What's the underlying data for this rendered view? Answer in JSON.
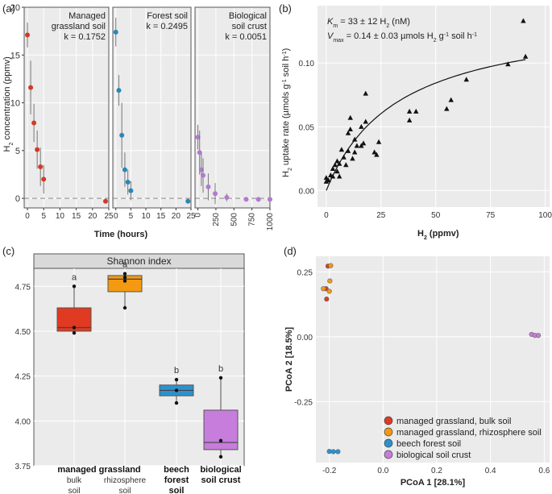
{
  "chart_data": [
    {
      "panel": "(a)",
      "type": "scatter",
      "ylabel": "H2 concentration (ppmv)",
      "xlabel": "Time (hours)",
      "ylim": [
        -1,
        20
      ],
      "yticks": [
        0,
        5,
        10,
        15,
        20
      ],
      "colors": {
        "grassland": "#d03a26",
        "forest": "#2a86b8",
        "crust": "#b07ad0"
      },
      "facets": [
        {
          "title_lines": [
            "Managed",
            "grassland soil"
          ],
          "k_label": "k = 0.1752",
          "xlim": [
            -1,
            25
          ],
          "xticks": [
            0,
            5,
            10,
            15,
            20,
            25
          ],
          "color": "#d03a26",
          "points": [
            {
              "x": 0,
              "y": 17.1,
              "err": 1.3
            },
            {
              "x": 1,
              "y": 11.6,
              "err": 2.8
            },
            {
              "x": 2,
              "y": 7.9,
              "err": 2.0
            },
            {
              "x": 3,
              "y": 5.1,
              "err": 2.0
            },
            {
              "x": 4,
              "y": 3.3,
              "err": 2.0
            },
            {
              "x": 5,
              "y": 2.0,
              "err": 1.5
            },
            {
              "x": 24,
              "y": -0.3,
              "err": 0
            }
          ]
        },
        {
          "title_lines": [
            "Forest soil"
          ],
          "k_label": "k = 0.2495",
          "xlim": [
            -1,
            25
          ],
          "xticks": [
            0,
            5,
            10,
            15,
            20,
            25
          ],
          "color": "#2a86b8",
          "points": [
            {
              "x": 0,
              "y": 17.4,
              "err": 1.5
            },
            {
              "x": 1,
              "y": 11.3,
              "err": 1.6
            },
            {
              "x": 2,
              "y": 6.6,
              "err": 3.4
            },
            {
              "x": 3,
              "y": 3.0,
              "err": 1.8
            },
            {
              "x": 4,
              "y": 1.7,
              "err": 1.3
            },
            {
              "x": 5,
              "y": 0.8,
              "err": 1.0
            },
            {
              "x": 24,
              "y": -0.3,
              "err": 0
            }
          ]
        },
        {
          "title_lines": [
            "Biological",
            "soil crust"
          ],
          "k_label": "k = 0.0051",
          "xlim": [
            -40,
            1000
          ],
          "xticks": [
            0,
            250,
            500,
            750,
            1000
          ],
          "color": "#b07ad0",
          "points": [
            {
              "x": 0,
              "y": 6.4,
              "err": 1.3
            },
            {
              "x": 24,
              "y": 4.8,
              "err": 2.3
            },
            {
              "x": 48,
              "y": 3.0,
              "err": 1.7
            },
            {
              "x": 72,
              "y": 2.4,
              "err": 1.8
            },
            {
              "x": 144,
              "y": 1.2,
              "err": 1.4
            },
            {
              "x": 240,
              "y": 0.5,
              "err": 1.1
            },
            {
              "x": 400,
              "y": 0.1,
              "err": 0.4
            },
            {
              "x": 670,
              "y": -0.1,
              "err": 0
            },
            {
              "x": 840,
              "y": -0.1,
              "err": 0
            },
            {
              "x": 1000,
              "y": -0.1,
              "err": 0
            }
          ]
        }
      ]
    },
    {
      "panel": "(b)",
      "type": "scatter",
      "annot_km_parts": [
        "K",
        "m",
        " = 33 ± 12 H",
        "2",
        " (nM)"
      ],
      "annot_vmax_parts": [
        "V",
        "max",
        " = 0.14 ± 0.03 µmols H",
        "2",
        " g",
        "-1",
        " soil h",
        "-1"
      ],
      "xlabel_parts": [
        "H",
        "2",
        " (ppmv)"
      ],
      "ylabel_parts": [
        "H",
        "2",
        " uptake rate (µmols g",
        "-1",
        " soil h",
        "-1",
        ")"
      ],
      "xlim": [
        -4,
        102
      ],
      "xticks": [
        0,
        25,
        50,
        75,
        100
      ],
      "ylim": [
        -0.013,
        0.145
      ],
      "yticks": [
        0,
        0.05,
        0.1
      ],
      "ytick_labels": [
        "0.00",
        "0.05",
        "0.10"
      ],
      "fit": {
        "Km": 33,
        "Vmax": 0.14,
        "x_range": [
          0,
          91
        ]
      },
      "points": [
        [
          0,
          0.007
        ],
        [
          0,
          0.01
        ],
        [
          1,
          0.008
        ],
        [
          2,
          0.012
        ],
        [
          3,
          0.017
        ],
        [
          3,
          0.011
        ],
        [
          4,
          0.02
        ],
        [
          5,
          0.015
        ],
        [
          5,
          0.023
        ],
        [
          6,
          0.021
        ],
        [
          6,
          0.011
        ],
        [
          7,
          0.032
        ],
        [
          8,
          0.026
        ],
        [
          9,
          0.02
        ],
        [
          10,
          0.045
        ],
        [
          10,
          0.031
        ],
        [
          11,
          0.048
        ],
        [
          11,
          0.057
        ],
        [
          12,
          0.025
        ],
        [
          13,
          0.04
        ],
        [
          13,
          0.03
        ],
        [
          14,
          0.035
        ],
        [
          16,
          0.035
        ],
        [
          16,
          0.05
        ],
        [
          17,
          0.037
        ],
        [
          18,
          0.054
        ],
        [
          18,
          0.076
        ],
        [
          22,
          0.03
        ],
        [
          23,
          0.028
        ],
        [
          24,
          0.038
        ],
        [
          38,
          0.055
        ],
        [
          38,
          0.062
        ],
        [
          41,
          0.062
        ],
        [
          55,
          0.064
        ],
        [
          57,
          0.071
        ],
        [
          64,
          0.087
        ],
        [
          83,
          0.099
        ],
        [
          90,
          0.133
        ],
        [
          91,
          0.105
        ]
      ]
    },
    {
      "panel": "(c)",
      "type": "box",
      "title": "Shannon index",
      "ylim": [
        3.75,
        4.85
      ],
      "yticks": [
        3.75,
        4.0,
        4.25,
        4.5,
        4.75
      ],
      "ytick_labels": [
        "3.75",
        "4.00",
        "4.25",
        "4.50",
        "4.75"
      ],
      "group_labels": {
        "grassland_title": "managed grassland",
        "bulk_line1": "bulk",
        "bulk_line2": "soil",
        "rhizo_line1": "rhizosphere",
        "rhizo_line2": "soil",
        "forest_line1": "beech",
        "forest_line2": "forest",
        "forest_line3": "soil",
        "crust_line1": "biological",
        "crust_line2": "soil crust"
      },
      "boxes": [
        {
          "name": "managed grassland, bulk soil",
          "color": "#e03a22",
          "min": 4.49,
          "q1": 4.5,
          "median": 4.52,
          "q3": 4.63,
          "max": 4.75,
          "points": [
            4.75,
            4.52,
            4.49
          ],
          "letter": "a"
        },
        {
          "name": "managed grassland, rhizosphere soil",
          "color": "#f39a12",
          "min": 4.63,
          "q1": 4.72,
          "median": 4.79,
          "q3": 4.81,
          "max": 4.82,
          "points": [
            4.82,
            4.8,
            4.78,
            4.63
          ],
          "letter": "a"
        },
        {
          "name": "beech forest soil",
          "color": "#2c92cf",
          "min": 4.1,
          "q1": 4.14,
          "median": 4.17,
          "q3": 4.2,
          "max": 4.23,
          "points": [
            4.23,
            4.17,
            4.1
          ],
          "letter": "b"
        },
        {
          "name": "biological soil crust",
          "color": "#c77ddc",
          "min": 3.8,
          "q1": 3.84,
          "median": 3.88,
          "q3": 4.06,
          "max": 4.24,
          "points": [
            4.24,
            3.89,
            3.8
          ],
          "letter": "b"
        }
      ]
    },
    {
      "panel": "(d)",
      "type": "scatter",
      "xlabel": "PCoA 1 [28.1%]",
      "ylabel": "PCoA 2 [18.5%]",
      "xlim": [
        -0.25,
        0.62
      ],
      "xticks": [
        -0.2,
        0,
        0.2,
        0.4,
        0.6
      ],
      "xtick_labels": [
        "-0.2",
        "0.0",
        "0.2",
        "0.4",
        "0.6"
      ],
      "ylim": [
        -0.485,
        0.31
      ],
      "yticks": [
        -0.25,
        0,
        0.25
      ],
      "ytick_labels": [
        "-0.25",
        "0.00",
        "0.25"
      ],
      "legend": [
        {
          "label": "managed grassland, bulk soil",
          "color": "#e03a22"
        },
        {
          "label": "managed grassland, rhizosphere soil",
          "color": "#f39a12"
        },
        {
          "label": "beech forest soil",
          "color": "#2c92cf"
        },
        {
          "label": "biological soil crust",
          "color": "#c77ddc"
        }
      ],
      "series": [
        {
          "name": "managed grassland, bulk soil",
          "color": "#e03a22",
          "points": [
            [
              -0.205,
              0.272
            ],
            [
              -0.212,
              0.185
            ],
            [
              -0.21,
              0.145
            ]
          ]
        },
        {
          "name": "managed grassland, rhizosphere soil",
          "color": "#f39a12",
          "points": [
            [
              -0.195,
              0.274
            ],
            [
              -0.198,
              0.215
            ],
            [
              -0.222,
              0.185
            ],
            [
              -0.2,
              0.175
            ]
          ]
        },
        {
          "name": "beech forest soil",
          "color": "#2c92cf",
          "points": [
            [
              -0.2,
              -0.442
            ],
            [
              -0.185,
              -0.443
            ],
            [
              -0.168,
              -0.443
            ]
          ]
        },
        {
          "name": "biological soil crust",
          "color": "#c77ddc",
          "points": [
            [
              0.553,
              0.009
            ],
            [
              0.565,
              0.005
            ],
            [
              0.578,
              0.005
            ]
          ]
        }
      ]
    }
  ],
  "panel_labels": [
    "(a)",
    "(b)",
    "(c)",
    "(d)"
  ]
}
